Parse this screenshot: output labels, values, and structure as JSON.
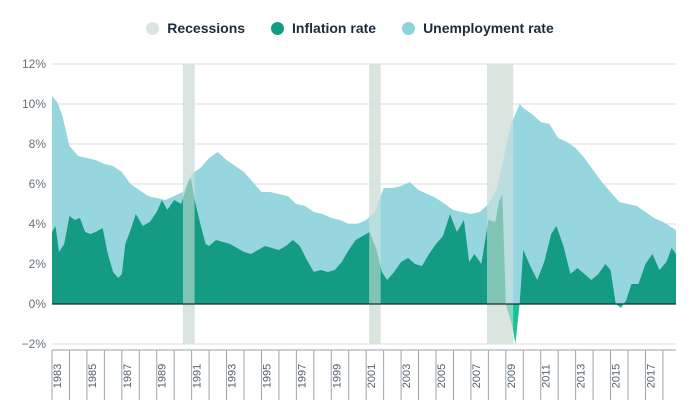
{
  "legend": {
    "recessions": "Recessions",
    "inflation": "Inflation rate",
    "unemployment": "Unemployment rate"
  },
  "colors": {
    "recession": "#dae5e0",
    "inflation": "#139b83",
    "inflation_negative": "#1bbf99",
    "unemployment": "#8dd3dc",
    "grid": "#dcdcdc",
    "zero_line": "#1e2b3a"
  },
  "chart_data": {
    "type": "area",
    "x_range": [
      1983.0,
      2018.75
    ],
    "ylim": [
      -2,
      12
    ],
    "y_ticks": [
      -2,
      0,
      2,
      4,
      6,
      8,
      10,
      12
    ],
    "y_tick_labels": [
      "−2%",
      "0%",
      "2%",
      "4%",
      "6%",
      "8%",
      "10%",
      "12%"
    ],
    "x_ticks": [
      1983,
      1985,
      1987,
      1989,
      1991,
      1993,
      1995,
      1997,
      1999,
      2001,
      2003,
      2005,
      2007,
      2009,
      2011,
      2013,
      2015,
      2017
    ],
    "x_tick_labels": [
      "1983",
      "1985",
      "1987",
      "1989",
      "1991",
      "1993",
      "1995",
      "1997",
      "1999",
      "2001",
      "2003",
      "2005",
      "2007",
      "2009",
      "2011",
      "2013",
      "2015",
      "2017"
    ],
    "grid": true,
    "legend_position": "top-center",
    "recessions": [
      {
        "start": 1990.5,
        "end": 1991.17
      },
      {
        "start": 2001.17,
        "end": 2001.83
      },
      {
        "start": 2007.92,
        "end": 2009.42
      }
    ],
    "series": [
      {
        "name": "Unemployment rate",
        "x": [
          1983.0,
          1983.3,
          1983.6,
          1984.0,
          1984.5,
          1985.0,
          1985.5,
          1986.0,
          1986.5,
          1987.0,
          1987.5,
          1988.0,
          1988.5,
          1989.0,
          1989.5,
          1990.0,
          1990.5,
          1991.0,
          1991.5,
          1992.0,
          1992.5,
          1993.0,
          1993.5,
          1994.0,
          1994.5,
          1995.0,
          1995.5,
          1996.0,
          1996.5,
          1997.0,
          1997.5,
          1998.0,
          1998.5,
          1999.0,
          1999.5,
          2000.0,
          2000.5,
          2001.0,
          2001.5,
          2002.0,
          2002.5,
          2003.0,
          2003.5,
          2004.0,
          2004.5,
          2005.0,
          2005.5,
          2006.0,
          2006.5,
          2007.0,
          2007.5,
          2008.0,
          2008.5,
          2009.0,
          2009.3,
          2009.6,
          2009.8,
          2010.0,
          2010.5,
          2011.0,
          2011.5,
          2012.0,
          2012.5,
          2013.0,
          2013.5,
          2014.0,
          2014.5,
          2015.0,
          2015.5,
          2016.0,
          2016.5,
          2017.0,
          2017.5,
          2018.0,
          2018.75
        ],
        "values": [
          10.4,
          10.1,
          9.4,
          7.9,
          7.4,
          7.3,
          7.2,
          7.0,
          6.9,
          6.6,
          6.0,
          5.7,
          5.4,
          5.3,
          5.2,
          5.4,
          5.6,
          6.5,
          6.8,
          7.3,
          7.6,
          7.2,
          6.9,
          6.6,
          6.1,
          5.6,
          5.6,
          5.5,
          5.4,
          5.0,
          4.9,
          4.6,
          4.5,
          4.3,
          4.2,
          4.0,
          4.0,
          4.2,
          4.6,
          5.8,
          5.8,
          5.9,
          6.1,
          5.7,
          5.5,
          5.3,
          5.0,
          4.7,
          4.6,
          4.5,
          4.6,
          5.0,
          5.8,
          7.8,
          9.0,
          9.6,
          10.0,
          9.8,
          9.5,
          9.1,
          9.0,
          8.3,
          8.1,
          7.8,
          7.3,
          6.7,
          6.1,
          5.6,
          5.1,
          5.0,
          4.9,
          4.6,
          4.3,
          4.1,
          3.7
        ]
      },
      {
        "name": "Inflation rate",
        "x": [
          1983.0,
          1983.2,
          1983.4,
          1983.7,
          1984.0,
          1984.3,
          1984.6,
          1984.9,
          1985.2,
          1985.5,
          1985.9,
          1986.2,
          1986.5,
          1986.8,
          1987.0,
          1987.2,
          1987.5,
          1987.8,
          1988.2,
          1988.6,
          1989.0,
          1989.3,
          1989.6,
          1990.0,
          1990.4,
          1990.8,
          1990.95,
          1991.2,
          1991.5,
          1991.8,
          1992.0,
          1992.4,
          1992.8,
          1993.2,
          1993.6,
          1994.0,
          1994.4,
          1994.8,
          1995.2,
          1995.6,
          1996.0,
          1996.4,
          1996.8,
          1997.2,
          1997.6,
          1998.0,
          1998.4,
          1998.8,
          1999.2,
          1999.6,
          2000.0,
          2000.4,
          2000.8,
          2001.2,
          2001.6,
          2001.9,
          2002.2,
          2002.6,
          2003.0,
          2003.4,
          2003.8,
          2004.2,
          2004.6,
          2005.0,
          2005.4,
          2005.8,
          2006.2,
          2006.6,
          2006.9,
          2007.2,
          2007.6,
          2008.0,
          2008.4,
          2008.6,
          2008.8,
          2009.0,
          2009.2,
          2009.4,
          2009.55,
          2009.8,
          2010.0,
          2010.4,
          2010.8,
          2011.2,
          2011.6,
          2011.9,
          2012.3,
          2012.7,
          2013.1,
          2013.5,
          2013.9,
          2014.3,
          2014.7,
          2015.0,
          2015.3,
          2015.6,
          2015.9,
          2016.2,
          2016.6,
          2017.0,
          2017.4,
          2017.8,
          2018.2,
          2018.5,
          2018.75
        ],
        "values": [
          3.6,
          3.9,
          2.6,
          3.0,
          4.4,
          4.2,
          4.3,
          3.6,
          3.5,
          3.6,
          3.8,
          2.5,
          1.6,
          1.3,
          1.5,
          3.0,
          3.7,
          4.5,
          3.9,
          4.1,
          4.6,
          5.2,
          4.7,
          5.2,
          5.0,
          6.1,
          6.3,
          5.1,
          4.0,
          3.0,
          2.9,
          3.2,
          3.1,
          3.0,
          2.8,
          2.6,
          2.5,
          2.7,
          2.9,
          2.8,
          2.7,
          2.9,
          3.2,
          2.9,
          2.2,
          1.6,
          1.7,
          1.6,
          1.7,
          2.1,
          2.7,
          3.2,
          3.4,
          3.6,
          2.7,
          1.6,
          1.2,
          1.6,
          2.1,
          2.3,
          2.0,
          1.9,
          2.5,
          3.0,
          3.4,
          4.5,
          3.6,
          4.2,
          2.1,
          2.5,
          2.0,
          4.2,
          4.1,
          5.1,
          5.5,
          0.0,
          -0.6,
          -1.2,
          -2.0,
          0.1,
          2.7,
          1.9,
          1.2,
          2.1,
          3.5,
          3.9,
          2.9,
          1.5,
          1.8,
          1.5,
          1.2,
          1.5,
          2.0,
          1.7,
          0.0,
          -0.2,
          0.2,
          1.0,
          1.0,
          2.0,
          2.5,
          1.7,
          2.1,
          2.8,
          2.5
        ]
      }
    ]
  }
}
